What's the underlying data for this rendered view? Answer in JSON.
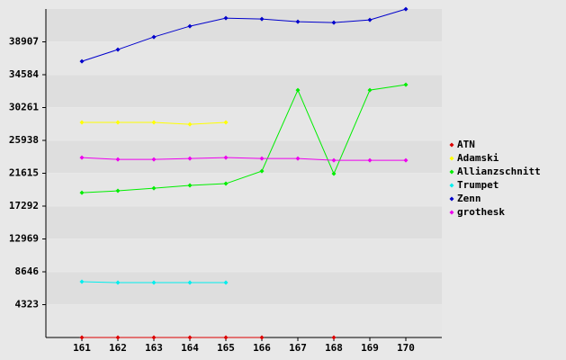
{
  "chart_data": {
    "type": "line",
    "x": [
      161,
      162,
      163,
      164,
      165,
      166,
      167,
      168,
      169,
      170
    ],
    "xlim": [
      160,
      171
    ],
    "xticks": [
      161,
      162,
      163,
      164,
      165,
      166,
      167,
      168,
      169,
      170
    ],
    "ylim": [
      0,
      43230
    ],
    "yticks": [
      4323,
      8646,
      12969,
      17292,
      21615,
      25938,
      30261,
      34584,
      38907
    ],
    "grid": true,
    "legend": "right",
    "series": [
      {
        "name": "ATN",
        "color": "#dd0000",
        "values": [
          0,
          0,
          0,
          0,
          0,
          0,
          null,
          0,
          null,
          null
        ]
      },
      {
        "name": "Adamski",
        "color": "#ffff00",
        "values": [
          28300,
          28300,
          28300,
          28060,
          28300,
          null,
          null,
          null,
          null,
          null
        ]
      },
      {
        "name": "Allianzschnitt",
        "color": "#00ee00",
        "values": [
          19060,
          19300,
          19650,
          20010,
          20250,
          21900,
          32560,
          21550,
          32560,
          33270
        ]
      },
      {
        "name": "Trumpet",
        "color": "#00eeee",
        "values": [
          7340,
          7220,
          7220,
          7220,
          7220,
          null,
          null,
          null,
          null,
          null
        ]
      },
      {
        "name": "Zenn",
        "color": "#0000cc",
        "values": [
          36350,
          37890,
          39550,
          40970,
          42030,
          41910,
          41560,
          41440,
          41800,
          43220
        ]
      },
      {
        "name": "grothesk",
        "color": "#ee00ee",
        "values": [
          23680,
          23440,
          23440,
          23560,
          23680,
          23560,
          23560,
          23320,
          23320,
          23320
        ]
      }
    ]
  }
}
